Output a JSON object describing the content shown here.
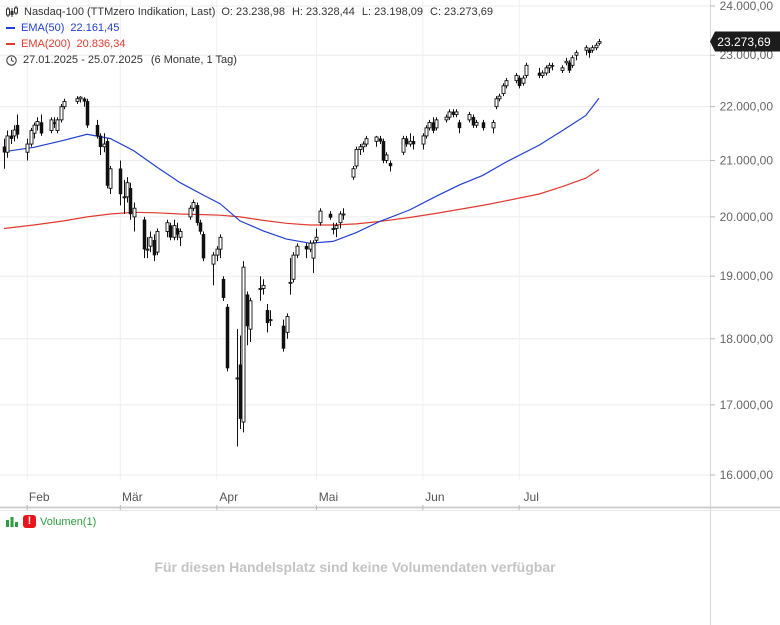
{
  "header": {
    "instrument": "Nasdaq-100 (TTMzero Indikation, Last)",
    "ohlc": {
      "open_label": "O:",
      "open": "23.238,98",
      "high_label": "H:",
      "high": "23.328,44",
      "low_label": "L:",
      "low": "23.198,09",
      "close_label": "C:",
      "close": "23.273,69"
    },
    "ema50": {
      "label": "EMA(50)",
      "value": "22.161,45",
      "color": "#2040d0"
    },
    "ema200": {
      "label": "EMA(200)",
      "value": "20.836,34",
      "color": "#e03a2e"
    },
    "range": "27.01.2025 - 25.07.2025",
    "interval": "(6 Monate, 1 Tag)"
  },
  "volume": {
    "label": "Volumen(1)",
    "message": "Für diesen Handelsplatz sind keine Volumendaten verfügbar"
  },
  "chart_data": {
    "type": "candlestick",
    "y_scale": "log",
    "ylim": [
      15900,
      24000
    ],
    "yticks": [
      "24.000,00",
      "23.000,00",
      "22.000,00",
      "21.000,00",
      "20.000,00",
      "19.000,00",
      "18.000,00",
      "17.000,00",
      "16.000,00"
    ],
    "ytick_values": [
      24000,
      23000,
      22000,
      21000,
      20000,
      19000,
      18000,
      17000,
      16000
    ],
    "x_range": [
      "2025-01-27",
      "2025-07-25"
    ],
    "xticks": [
      {
        "label": "Feb",
        "date": "2025-02-03"
      },
      {
        "label": "Mär",
        "date": "2025-03-03"
      },
      {
        "label": "Apr",
        "date": "2025-04-01"
      },
      {
        "label": "Mai",
        "date": "2025-05-01"
      },
      {
        "label": "Jun",
        "date": "2025-06-02"
      },
      {
        "label": "Jul",
        "date": "2025-07-01"
      }
    ],
    "last_price_label": "23.273,69",
    "colors": {
      "candle": "#111111",
      "ema50": "#2040d0",
      "ema200": "#e03a2e",
      "last_price_badge": "#1c1c1c"
    },
    "grid": true,
    "candles": [
      [
        "2025-01-27",
        21250,
        21400,
        20850,
        21150
      ],
      [
        "2025-01-28",
        21150,
        21550,
        21050,
        21450
      ],
      [
        "2025-01-29",
        21450,
        21560,
        21300,
        21400
      ],
      [
        "2025-01-30",
        21450,
        21650,
        21350,
        21560
      ],
      [
        "2025-01-31",
        21650,
        21850,
        21400,
        21480
      ],
      [
        "2025-02-03",
        21150,
        21400,
        21000,
        21300
      ],
      [
        "2025-02-04",
        21300,
        21600,
        21250,
        21550
      ],
      [
        "2025-02-05",
        21500,
        21700,
        21400,
        21650
      ],
      [
        "2025-02-06",
        21650,
        21800,
        21550,
        21720
      ],
      [
        "2025-02-07",
        21700,
        21850,
        21450,
        21500
      ],
      [
        "2025-02-10",
        21550,
        21800,
        21500,
        21750
      ],
      [
        "2025-02-11",
        21700,
        21800,
        21600,
        21680
      ],
      [
        "2025-02-12",
        21550,
        21800,
        21500,
        21750
      ],
      [
        "2025-02-13",
        21750,
        22050,
        21700,
        22000
      ],
      [
        "2025-02-14",
        22000,
        22150,
        21950,
        22100
      ],
      [
        "2025-02-18",
        22100,
        22200,
        22050,
        22150
      ],
      [
        "2025-02-19",
        22150,
        22200,
        22080,
        22180
      ],
      [
        "2025-02-20",
        22150,
        22180,
        22000,
        22100
      ],
      [
        "2025-02-21",
        22100,
        22150,
        21600,
        21650
      ],
      [
        "2025-02-24",
        21650,
        21750,
        21400,
        21450
      ],
      [
        "2025-02-25",
        21450,
        21500,
        21100,
        21250
      ],
      [
        "2025-02-26",
        21250,
        21500,
        21150,
        21300
      ],
      [
        "2025-02-27",
        21350,
        21400,
        20500,
        20550
      ],
      [
        "2025-02-28",
        20500,
        20900,
        20400,
        20850
      ],
      [
        "2025-03-03",
        20850,
        21000,
        20200,
        20400
      ],
      [
        "2025-03-04",
        20350,
        20650,
        20050,
        20350
      ],
      [
        "2025-03-05",
        20350,
        20700,
        20250,
        20600
      ],
      [
        "2025-03-06",
        20500,
        20600,
        19950,
        20050
      ],
      [
        "2025-03-07",
        20000,
        20250,
        19750,
        20150
      ],
      [
        "2025-03-10",
        19950,
        20000,
        19300,
        19450
      ],
      [
        "2025-03-11",
        19450,
        19650,
        19300,
        19450
      ],
      [
        "2025-03-12",
        19500,
        19750,
        19400,
        19650
      ],
      [
        "2025-03-13",
        19600,
        19700,
        19250,
        19350
      ],
      [
        "2025-03-14",
        19400,
        19800,
        19350,
        19750
      ],
      [
        "2025-03-17",
        19750,
        19950,
        19650,
        19900
      ],
      [
        "2025-03-18",
        19850,
        19900,
        19600,
        19650
      ],
      [
        "2025-03-19",
        19650,
        19950,
        19600,
        19850
      ],
      [
        "2025-03-20",
        19800,
        19900,
        19600,
        19700
      ],
      [
        "2025-03-21",
        19650,
        19800,
        19500,
        19750
      ],
      [
        "2025-03-24",
        20000,
        20200,
        19950,
        20150
      ],
      [
        "2025-03-25",
        20150,
        20300,
        20100,
        20250
      ],
      [
        "2025-03-26",
        20200,
        20250,
        19850,
        19900
      ],
      [
        "2025-03-27",
        19900,
        19950,
        19700,
        19750
      ],
      [
        "2025-03-28",
        19700,
        19750,
        19250,
        19300
      ],
      [
        "2025-03-31",
        19200,
        19400,
        18850,
        19350
      ],
      [
        "2025-04-01",
        19350,
        19500,
        19250,
        19450
      ],
      [
        "2025-04-02",
        19450,
        19700,
        19300,
        19650
      ],
      [
        "2025-04-03",
        18950,
        19000,
        18600,
        18650
      ],
      [
        "2025-04-04",
        18500,
        18550,
        17500,
        17550
      ],
      [
        "2025-04-07",
        17400,
        18150,
        16400,
        17400
      ],
      [
        "2025-04-08",
        17600,
        18050,
        16650,
        16800
      ],
      [
        "2025-04-09",
        16750,
        19250,
        16600,
        19150
      ],
      [
        "2025-04-10",
        18700,
        18750,
        17900,
        18200
      ],
      [
        "2025-04-11",
        18150,
        18650,
        17950,
        18600
      ],
      [
        "2025-04-14",
        18800,
        19000,
        18600,
        18800
      ],
      [
        "2025-04-15",
        18800,
        18950,
        18700,
        18850
      ],
      [
        "2025-04-16",
        18450,
        18550,
        18100,
        18250
      ],
      [
        "2025-04-17",
        18300,
        18450,
        18200,
        18300
      ],
      [
        "2025-04-21",
        18200,
        18300,
        17800,
        17850
      ],
      [
        "2025-04-22",
        18100,
        18400,
        18000,
        18350
      ],
      [
        "2025-04-23",
        18900,
        19300,
        18700,
        18900
      ],
      [
        "2025-04-24",
        18950,
        19400,
        18900,
        19350
      ],
      [
        "2025-04-25",
        19350,
        19550,
        19300,
        19500
      ],
      [
        "2025-04-28",
        19500,
        19550,
        19300,
        19450
      ],
      [
        "2025-04-29",
        19450,
        19600,
        19400,
        19550
      ],
      [
        "2025-04-30",
        19300,
        19600,
        19050,
        19550
      ],
      [
        "2025-05-01",
        19600,
        19800,
        19550,
        19650
      ],
      [
        "2025-05-02",
        19900,
        20150,
        19850,
        20100
      ],
      [
        "2025-05-05",
        20050,
        20100,
        19950,
        19990
      ],
      [
        "2025-05-06",
        19800,
        19900,
        19700,
        19800
      ],
      [
        "2025-05-07",
        19800,
        19900,
        19650,
        19850
      ],
      [
        "2025-05-08",
        19900,
        20100,
        19800,
        20050
      ],
      [
        "2025-05-09",
        20050,
        20150,
        19950,
        20050
      ],
      [
        "2025-05-12",
        20700,
        20900,
        20650,
        20850
      ],
      [
        "2025-05-13",
        20900,
        21250,
        20850,
        21200
      ],
      [
        "2025-05-14",
        21200,
        21300,
        21100,
        21250
      ],
      [
        "2025-05-15",
        21250,
        21350,
        21150,
        21300
      ],
      [
        "2025-05-16",
        21300,
        21450,
        21250,
        21400
      ],
      [
        "2025-05-19",
        21350,
        21450,
        21250,
        21430
      ],
      [
        "2025-05-20",
        21400,
        21450,
        21300,
        21350
      ],
      [
        "2025-05-21",
        21350,
        21400,
        20950,
        21000
      ],
      [
        "2025-05-22",
        21000,
        21150,
        20950,
        21100
      ],
      [
        "2025-05-23",
        20950,
        21000,
        20800,
        20900
      ],
      [
        "2025-05-27",
        21150,
        21450,
        21100,
        21400
      ],
      [
        "2025-05-28",
        21400,
        21450,
        21250,
        21300
      ],
      [
        "2025-05-29",
        21300,
        21500,
        21250,
        21350
      ],
      [
        "2025-05-30",
        21350,
        21450,
        21200,
        21300
      ],
      [
        "2025-06-02",
        21300,
        21500,
        21200,
        21450
      ],
      [
        "2025-06-03",
        21450,
        21650,
        21400,
        21600
      ],
      [
        "2025-06-04",
        21600,
        21750,
        21550,
        21700
      ],
      [
        "2025-06-05",
        21700,
        21800,
        21500,
        21550
      ],
      [
        "2025-06-06",
        21600,
        21800,
        21550,
        21750
      ],
      [
        "2025-06-09",
        21750,
        21850,
        21700,
        21800
      ],
      [
        "2025-06-10",
        21800,
        21950,
        21750,
        21900
      ],
      [
        "2025-06-11",
        21900,
        21950,
        21800,
        21850
      ],
      [
        "2025-06-12",
        21850,
        21950,
        21800,
        21900
      ],
      [
        "2025-06-13",
        21700,
        21750,
        21500,
        21600
      ],
      [
        "2025-06-16",
        21750,
        21900,
        21700,
        21850
      ],
      [
        "2025-06-17",
        21800,
        21850,
        21600,
        21650
      ],
      [
        "2025-06-18",
        21650,
        21750,
        21600,
        21700
      ],
      [
        "2025-06-20",
        21700,
        21750,
        21550,
        21600
      ],
      [
        "2025-06-23",
        21600,
        21750,
        21500,
        21700
      ],
      [
        "2025-06-24",
        22000,
        22200,
        21950,
        22150
      ],
      [
        "2025-06-25",
        22150,
        22250,
        22100,
        22200
      ],
      [
        "2025-06-26",
        22250,
        22450,
        22200,
        22400
      ],
      [
        "2025-06-27",
        22400,
        22550,
        22350,
        22500
      ],
      [
        "2025-06-30",
        22500,
        22650,
        22450,
        22600
      ],
      [
        "2025-07-01",
        22550,
        22600,
        22350,
        22400
      ],
      [
        "2025-07-02",
        22450,
        22600,
        22400,
        22550
      ],
      [
        "2025-07-03",
        22600,
        22850,
        22550,
        22800
      ],
      [
        "2025-07-07",
        22650,
        22750,
        22550,
        22600
      ],
      [
        "2025-07-08",
        22600,
        22700,
        22550,
        22650
      ],
      [
        "2025-07-09",
        22650,
        22800,
        22600,
        22750
      ],
      [
        "2025-07-10",
        22750,
        22850,
        22650,
        22800
      ],
      [
        "2025-07-11",
        22800,
        22850,
        22700,
        22780
      ],
      [
        "2025-07-14",
        22700,
        22800,
        22650,
        22750
      ],
      [
        "2025-07-15",
        22850,
        22950,
        22800,
        22880
      ],
      [
        "2025-07-16",
        22850,
        22900,
        22650,
        22700
      ],
      [
        "2025-07-17",
        22800,
        23000,
        22750,
        22950
      ],
      [
        "2025-07-18",
        23000,
        23100,
        22900,
        23050
      ],
      [
        "2025-07-21",
        23100,
        23200,
        23000,
        23150
      ],
      [
        "2025-07-22",
        23100,
        23150,
        22950,
        23050
      ],
      [
        "2025-07-23",
        23100,
        23200,
        23050,
        23150
      ],
      [
        "2025-07-24",
        23150,
        23250,
        23100,
        23200
      ],
      [
        "2025-07-25",
        23239,
        23328,
        23198,
        23274
      ]
    ],
    "series": [
      {
        "name": "EMA(50)",
        "points": [
          [
            "2025-01-27",
            21160
          ],
          [
            "2025-02-05",
            21240
          ],
          [
            "2025-02-14",
            21370
          ],
          [
            "2025-02-21",
            21480
          ],
          [
            "2025-02-28",
            21400
          ],
          [
            "2025-03-07",
            21180
          ],
          [
            "2025-03-14",
            20880
          ],
          [
            "2025-03-21",
            20600
          ],
          [
            "2025-03-28",
            20380
          ],
          [
            "2025-04-02",
            20230
          ],
          [
            "2025-04-08",
            19930
          ],
          [
            "2025-04-15",
            19760
          ],
          [
            "2025-04-22",
            19620
          ],
          [
            "2025-04-29",
            19550
          ],
          [
            "2025-05-06",
            19580
          ],
          [
            "2025-05-13",
            19730
          ],
          [
            "2025-05-20",
            19920
          ],
          [
            "2025-05-29",
            20120
          ],
          [
            "2025-06-06",
            20360
          ],
          [
            "2025-06-13",
            20560
          ],
          [
            "2025-06-20",
            20730
          ],
          [
            "2025-06-27",
            20970
          ],
          [
            "2025-07-07",
            21280
          ],
          [
            "2025-07-14",
            21550
          ],
          [
            "2025-07-21",
            21830
          ],
          [
            "2025-07-25",
            22161
          ]
        ]
      },
      {
        "name": "EMA(200)",
        "points": [
          [
            "2025-01-27",
            19800
          ],
          [
            "2025-02-05",
            19860
          ],
          [
            "2025-02-14",
            19930
          ],
          [
            "2025-02-21",
            20000
          ],
          [
            "2025-02-28",
            20050
          ],
          [
            "2025-03-07",
            20080
          ],
          [
            "2025-03-14",
            20070
          ],
          [
            "2025-03-21",
            20050
          ],
          [
            "2025-03-28",
            20040
          ],
          [
            "2025-04-02",
            20030
          ],
          [
            "2025-04-08",
            20000
          ],
          [
            "2025-04-15",
            19940
          ],
          [
            "2025-04-22",
            19890
          ],
          [
            "2025-04-29",
            19860
          ],
          [
            "2025-05-06",
            19860
          ],
          [
            "2025-05-13",
            19880
          ],
          [
            "2025-05-20",
            19920
          ],
          [
            "2025-05-29",
            19990
          ],
          [
            "2025-06-06",
            20060
          ],
          [
            "2025-06-13",
            20130
          ],
          [
            "2025-06-20",
            20200
          ],
          [
            "2025-06-27",
            20280
          ],
          [
            "2025-07-07",
            20400
          ],
          [
            "2025-07-14",
            20530
          ],
          [
            "2025-07-21",
            20680
          ],
          [
            "2025-07-25",
            20836
          ]
        ]
      }
    ]
  }
}
